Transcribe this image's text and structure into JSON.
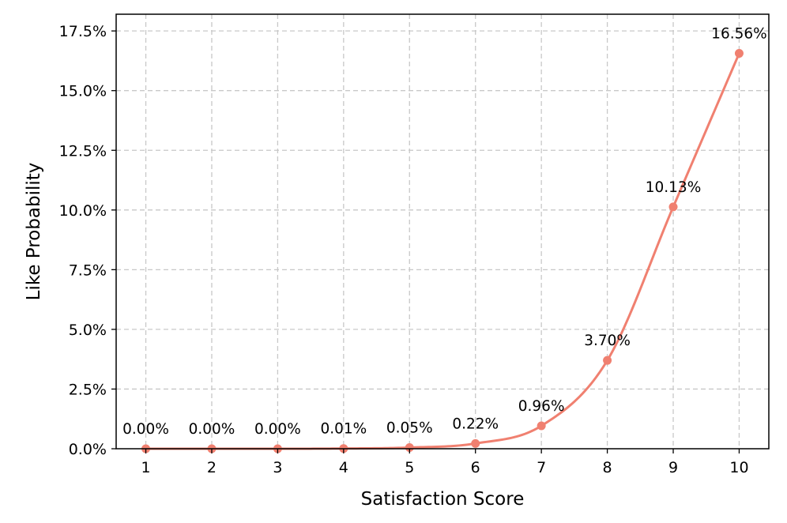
{
  "chart_data": {
    "type": "line",
    "xlabel": "Satisfaction Score",
    "ylabel": "Like Probability",
    "x": [
      1,
      2,
      3,
      4,
      5,
      6,
      7,
      8,
      9,
      10
    ],
    "xlim": [
      0.55,
      10.45
    ],
    "ylim": [
      0,
      18.2
    ],
    "y_unit": "percent",
    "y_ticks": [
      0,
      2.5,
      5,
      7.5,
      10,
      12.5,
      15,
      17.5
    ],
    "y_tick_labels": [
      "0.0%",
      "2.5%",
      "5.0%",
      "7.5%",
      "10.0%",
      "12.5%",
      "15.0%",
      "17.5%"
    ],
    "x_tick_labels": [
      "1",
      "2",
      "3",
      "4",
      "5",
      "6",
      "7",
      "8",
      "9",
      "10"
    ],
    "grid": true,
    "smooth_curve": true,
    "series": [
      {
        "color": "#f08070",
        "values": [
          0.0,
          0.0,
          0.0,
          0.01,
          0.05,
          0.22,
          0.96,
          3.7,
          10.13,
          16.56
        ],
        "labels": [
          "0.00%",
          "0.00%",
          "0.00%",
          "0.01%",
          "0.05%",
          "0.22%",
          "0.96%",
          "3.70%",
          "10.13%",
          "16.56%"
        ]
      }
    ]
  }
}
